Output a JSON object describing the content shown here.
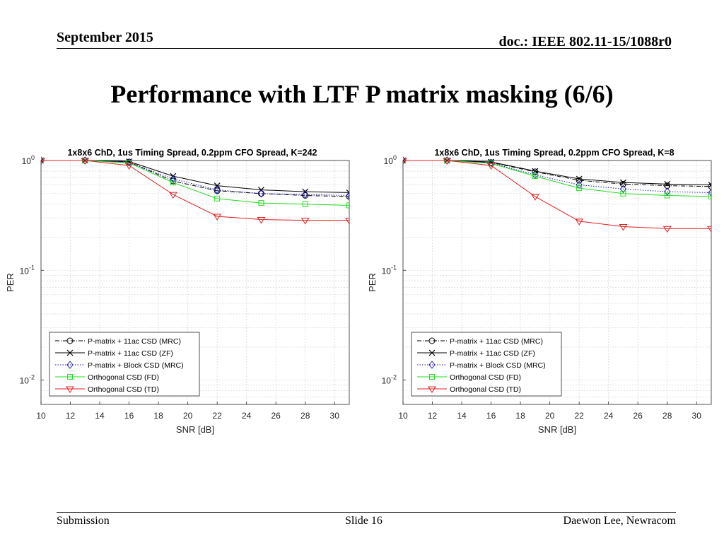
{
  "header": {
    "date": "September 2015",
    "doc": "doc.: IEEE 802.11-15/1088r0"
  },
  "slide_title": "Performance with LTF P matrix masking (6/6)",
  "footer": {
    "left": "Submission",
    "center": "Slide 16",
    "right": "Daewon Lee, Newracom"
  },
  "colors": {
    "black": "#000000",
    "blue": "#1f1fb4",
    "green": "#22dd22",
    "red": "#e02020",
    "grid": "#d9d9d9"
  },
  "chart_data": [
    {
      "type": "line",
      "title": "1x8x6 ChD, 1us Timing Spread, 0.2ppm CFO Spread, K=242",
      "xlabel": "SNR [dB]",
      "ylabel": "PER",
      "yscale": "log",
      "xlim": [
        10,
        31
      ],
      "ylim": [
        0.006,
        1
      ],
      "xticks": [
        10,
        12,
        14,
        16,
        18,
        20,
        22,
        24,
        26,
        28,
        30
      ],
      "yticks": [
        {
          "v": 1,
          "base": "10",
          "exp": "0"
        },
        {
          "v": 0.1,
          "base": "10",
          "exp": "-1"
        },
        {
          "v": 0.01,
          "base": "10",
          "exp": "-2"
        }
      ],
      "grid": true,
      "legend_position": "lower-left",
      "x": [
        10,
        13,
        16,
        19,
        22,
        25,
        28,
        31
      ],
      "series": [
        {
          "name": "P-matrix + 11ac CSD (MRC)",
          "color": "#000000",
          "dash": "6,2,1,2",
          "marker": "circle",
          "values": [
            1,
            1,
            0.97,
            0.65,
            0.53,
            0.5,
            0.48,
            0.47
          ]
        },
        {
          "name": "P-matrix + 11ac CSD (ZF)",
          "color": "#000000",
          "dash": "",
          "marker": "x",
          "values": [
            1,
            1,
            0.98,
            0.72,
            0.59,
            0.54,
            0.52,
            0.51
          ]
        },
        {
          "name": "P-matrix + Block CSD (MRC)",
          "color": "#1f1fb4",
          "dash": "1.5,2",
          "marker": "diamond",
          "values": [
            1,
            1,
            0.96,
            0.68,
            0.54,
            0.5,
            0.49,
            0.48
          ]
        },
        {
          "name": "Orthogonal CSD (FD)",
          "color": "#22dd22",
          "dash": "",
          "marker": "square",
          "values": [
            1,
            1,
            0.95,
            0.63,
            0.45,
            0.41,
            0.4,
            0.39
          ]
        },
        {
          "name": "Orthogonal CSD (TD)",
          "color": "#e02020",
          "dash": "",
          "marker": "triangle-down",
          "values": [
            1,
            1,
            0.9,
            0.49,
            0.31,
            0.29,
            0.285,
            0.285
          ]
        }
      ]
    },
    {
      "type": "line",
      "title": "1x8x6 ChD, 1us Timing Spread, 0.2ppm CFO Spread, K=8",
      "xlabel": "SNR [dB]",
      "ylabel": "PER",
      "yscale": "log",
      "xlim": [
        10,
        31
      ],
      "ylim": [
        0.006,
        1
      ],
      "xticks": [
        10,
        12,
        14,
        16,
        18,
        20,
        22,
        24,
        26,
        28,
        30
      ],
      "yticks": [
        {
          "v": 1,
          "base": "10",
          "exp": "0"
        },
        {
          "v": 0.1,
          "base": "10",
          "exp": "-1"
        },
        {
          "v": 0.01,
          "base": "10",
          "exp": "-2"
        }
      ],
      "grid": true,
      "legend_position": "lower-left",
      "x": [
        10,
        13,
        16,
        19,
        22,
        25,
        28,
        31
      ],
      "series": [
        {
          "name": "P-matrix + 11ac CSD (MRC)",
          "color": "#000000",
          "dash": "6,2,1,2",
          "marker": "circle",
          "values": [
            1,
            1,
            0.96,
            0.79,
            0.66,
            0.61,
            0.59,
            0.58
          ]
        },
        {
          "name": "P-matrix + 11ac CSD (ZF)",
          "color": "#000000",
          "dash": "",
          "marker": "x",
          "values": [
            1,
            1,
            0.97,
            0.8,
            0.68,
            0.63,
            0.61,
            0.6
          ]
        },
        {
          "name": "P-matrix + Block CSD (MRC)",
          "color": "#1f1fb4",
          "dash": "1.5,2",
          "marker": "diamond",
          "values": [
            1,
            1,
            0.95,
            0.74,
            0.6,
            0.55,
            0.52,
            0.51
          ]
        },
        {
          "name": "Orthogonal CSD (FD)",
          "color": "#22dd22",
          "dash": "",
          "marker": "square",
          "values": [
            1,
            1,
            0.94,
            0.72,
            0.56,
            0.5,
            0.48,
            0.47
          ]
        },
        {
          "name": "Orthogonal CSD (TD)",
          "color": "#e02020",
          "dash": "",
          "marker": "triangle-down",
          "values": [
            1,
            1,
            0.9,
            0.47,
            0.28,
            0.25,
            0.24,
            0.24
          ]
        }
      ]
    }
  ]
}
